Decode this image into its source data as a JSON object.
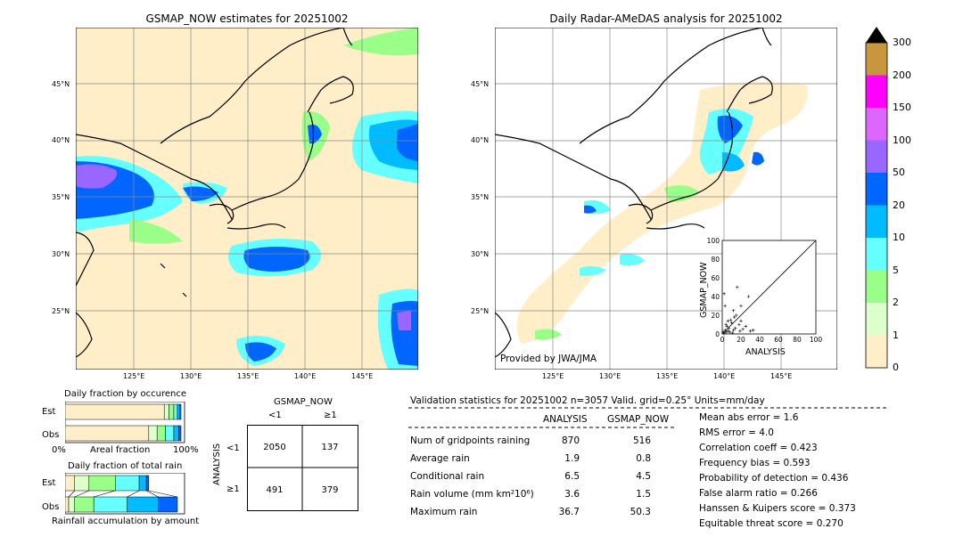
{
  "left_map": {
    "title": "GSMAP_NOW estimates for 20251002",
    "lat_labels": [
      "45°N",
      "40°N",
      "35°N",
      "30°N",
      "25°N"
    ],
    "lon_labels": [
      "125°E",
      "130°E",
      "135°E",
      "140°E",
      "145°E"
    ]
  },
  "right_map": {
    "title": "Daily Radar-AMeDAS analysis for 20251002",
    "lat_labels": [
      "45°N",
      "40°N",
      "35°N",
      "30°N",
      "25°N"
    ],
    "lon_labels": [
      "125°E",
      "130°E",
      "135°E",
      "140°E",
      "145°E"
    ],
    "credit": "Provided by JWA/JMA"
  },
  "colorbar": {
    "ticks": [
      "300",
      "200",
      "150",
      "100",
      "50",
      "20",
      "10",
      "5",
      "2",
      "1",
      "0"
    ],
    "colors": [
      "#c8963c",
      "#ff00ff",
      "#dd66ff",
      "#9966ff",
      "#0066ff",
      "#00bbff",
      "#66ffff",
      "#99ff88",
      "#ddffcc",
      "#ffeec8"
    ],
    "over_color": "#000000"
  },
  "inset_scatter": {
    "xlabel": "ANALYSIS",
    "ylabel": "GSMAP_NOW",
    "ticks": [
      "0",
      "20",
      "40",
      "60",
      "80",
      "100"
    ]
  },
  "occurrence": {
    "title": "Daily fraction by occurence",
    "row_est": "Est",
    "row_obs": "Obs",
    "axis_left": "0%",
    "axis_mid": "Areal fraction",
    "axis_right": "100%"
  },
  "total_rain": {
    "title": "Daily fraction of total rain",
    "row_est": "Est",
    "row_obs": "Obs",
    "footer": "Rainfall accumulation by amount"
  },
  "contingency": {
    "col_title": "GSMAP_NOW",
    "row_title": "ANALYSIS",
    "col_lt": "<1",
    "col_ge": "≥1",
    "row_lt": "<1",
    "row_ge": "≥1",
    "cells": [
      [
        "2050",
        "137"
      ],
      [
        "491",
        "379"
      ]
    ]
  },
  "validation": {
    "header": "Validation statistics for 20251002  n=3057 Valid. grid=0.25° Units=mm/day",
    "col_analysis": "ANALYSIS",
    "col_gsmap": "GSMAP_NOW",
    "rows": [
      {
        "label": "Num of gridpoints raining",
        "analysis": "870",
        "gsmap": "516"
      },
      {
        "label": "Average rain",
        "analysis": "1.9",
        "gsmap": "0.8"
      },
      {
        "label": "Conditional rain",
        "analysis": "6.5",
        "gsmap": "4.5"
      },
      {
        "label": "Rain volume (mm km²10⁶)",
        "analysis": "3.6",
        "gsmap": "1.5"
      },
      {
        "label": "Maximum rain",
        "analysis": "36.7",
        "gsmap": "50.3"
      }
    ],
    "scores": [
      "Mean abs error =    1.6",
      "RMS error =    4.0",
      "Correlation coeff =  0.423",
      "Frequency bias =  0.593",
      "Probability of detection =  0.436",
      "False alarm ratio =  0.266",
      "Hanssen & Kuipers score =  0.373",
      "Equitable threat score =  0.270"
    ]
  },
  "chart_data": [
    {
      "type": "bar",
      "title": "Daily fraction by occurence",
      "categories": [
        "Est",
        "Obs"
      ],
      "series": [
        {
          "values": [
            0.83,
            0.7
          ]
        },
        {
          "values": [
            0.04,
            0.07
          ]
        },
        {
          "values": [
            0.04,
            0.07
          ]
        },
        {
          "values": [
            0.03,
            0.07
          ]
        },
        {
          "values": [
            0.02,
            0.04
          ]
        },
        {
          "values": [
            0.01,
            0.02
          ]
        }
      ],
      "xlabel": "Areal fraction"
    },
    {
      "type": "bar",
      "title": "Daily fraction of total rain",
      "categories": [
        "Est",
        "Obs"
      ],
      "series": [
        {
          "values": [
            0.08,
            0.03
          ]
        },
        {
          "values": [
            0.12,
            0.05
          ]
        },
        {
          "values": [
            0.22,
            0.16
          ]
        },
        {
          "values": [
            0.2,
            0.28
          ]
        },
        {
          "values": [
            0.06,
            0.26
          ]
        },
        {
          "values": [
            0.02,
            0.16
          ]
        }
      ],
      "xlabel": "Rainfall accumulation by amount"
    },
    {
      "type": "scatter",
      "xlabel": "ANALYSIS",
      "ylabel": "GSMAP_NOW",
      "xlim": [
        0,
        100
      ],
      "ylim": [
        0,
        100
      ],
      "points": [
        [
          1,
          2
        ],
        [
          2,
          1
        ],
        [
          3,
          4
        ],
        [
          4,
          2
        ],
        [
          5,
          8
        ],
        [
          6,
          3
        ],
        [
          7,
          6
        ],
        [
          8,
          2
        ],
        [
          10,
          12
        ],
        [
          12,
          4
        ],
        [
          14,
          6
        ],
        [
          15,
          20
        ],
        [
          18,
          10
        ],
        [
          20,
          30
        ],
        [
          22,
          5
        ],
        [
          25,
          8
        ],
        [
          30,
          3
        ],
        [
          2,
          43
        ],
        [
          16,
          50
        ],
        [
          28,
          40
        ],
        [
          9,
          15
        ],
        [
          11,
          1
        ],
        [
          4,
          10
        ],
        [
          6,
          14
        ],
        [
          13,
          18
        ],
        [
          20,
          14
        ],
        [
          33,
          4
        ],
        [
          3,
          30
        ],
        [
          12,
          25
        ],
        [
          19,
          3
        ]
      ]
    }
  ]
}
